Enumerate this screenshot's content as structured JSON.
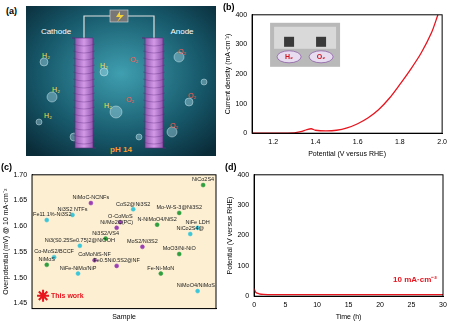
{
  "illustration": {
    "title": "(a)",
    "cathode": "Cathode",
    "anode": "Anode",
    "cathode_gas": "H₂",
    "anode_gas": "O₂",
    "electrolyte": "pH 14"
  },
  "chart_data": [
    {
      "type": "line",
      "title": "(b)",
      "x_label": "Potential (V versus RHE)",
      "y_label": "Current density (mA·cm⁻²)",
      "x": [
        1.1,
        1.2,
        1.3,
        1.33,
        1.36,
        1.38,
        1.4,
        1.45,
        1.5,
        1.55,
        1.6,
        1.65,
        1.7,
        1.75,
        1.8,
        1.85,
        1.9,
        1.95,
        1.98
      ],
      "values": [
        0,
        0,
        1,
        5,
        12,
        15,
        10,
        8,
        10,
        18,
        32,
        52,
        80,
        118,
        165,
        215,
        270,
        340,
        400
      ],
      "color": "#e8141e",
      "xlim": [
        1.1,
        2.0
      ],
      "xticks": [
        1.2,
        1.4,
        1.6,
        1.8,
        {
          "value": 2,
          "label": "2.0"
        }
      ],
      "ylim": [
        0,
        400
      ],
      "yticks": [
        0,
        100,
        200,
        300,
        400
      ],
      "grid": false,
      "annotations": [
        "H₂",
        "O₂"
      ]
    },
    {
      "type": "scatter",
      "title": "(c)",
      "x_label": "Sample",
      "y_label": "Overpotential (mV) @ 10 mA·cm⁻²",
      "xlim": [
        0,
        1
      ],
      "ylim": [
        1.44,
        1.7
      ],
      "yticks": [
        1.45,
        {
          "value": 1.5,
          "label": "1.50"
        },
        1.55,
        {
          "value": 1.6,
          "label": "1.60"
        },
        1.65,
        {
          "value": 1.7,
          "label": "1.70"
        }
      ],
      "tick_labels": "y",
      "grid": false,
      "points": [
        {
          "label": "NiCo2S4",
          "x": 0.93,
          "y": 1.68,
          "color": "#2e9e3e",
          "marker": "circle"
        },
        {
          "label": "NiMoC-NCNFs",
          "x": 0.32,
          "y": 1.645,
          "color": "#9b3fb5",
          "marker": "circle"
        },
        {
          "label": "CoS2@Ni3S2",
          "x": 0.55,
          "y": 1.633,
          "color": "#3cc6d8",
          "marker": "circle"
        },
        {
          "label": "Mo-W-S-3@Ni3S2",
          "x": 0.8,
          "y": 1.626,
          "color": "#2e9e3e",
          "marker": "circle"
        },
        {
          "label": "Ni3S2 NTFs",
          "x": 0.22,
          "y": 1.622,
          "color": "#3cc6d8",
          "marker": "circle"
        },
        {
          "label": "Fe11.1%-Ni3S2",
          "x": 0.08,
          "y": 1.612,
          "color": "#3cc6d8",
          "marker": "circle"
        },
        {
          "label": "O-CoMoS",
          "x": 0.48,
          "y": 1.608,
          "color": "#9b3fb5",
          "marker": "circle"
        },
        {
          "label": "N-NiMoO4/NiS2",
          "x": 0.68,
          "y": 1.603,
          "color": "#2e9e3e",
          "marker": "circle"
        },
        {
          "label": "NiFe LDH",
          "x": 0.9,
          "y": 1.597,
          "color": "#3cc6d8",
          "marker": "circle"
        },
        {
          "label": "Ni/Mo2C(PC)",
          "x": 0.46,
          "y": 1.597,
          "color": "#9b3fb5",
          "marker": "circle"
        },
        {
          "label": "NiCo2S4@",
          "x": 0.86,
          "y": 1.585,
          "color": "#3cc6d8",
          "marker": "circle"
        },
        {
          "label": "Ni3S2/VS4",
          "x": 0.4,
          "y": 1.576,
          "color": "#2e9e3e",
          "marker": "circle"
        },
        {
          "label": "Ni3(S0.25Se0.75)2@NiOOH",
          "x": 0.26,
          "y": 1.562,
          "color": "#3cc6d8",
          "marker": "circle"
        },
        {
          "label": "MoS2/Ni3S2",
          "x": 0.6,
          "y": 1.56,
          "color": "#9b3fb5",
          "marker": "circle"
        },
        {
          "label": "MoO3/Ni-NiO",
          "x": 0.8,
          "y": 1.546,
          "color": "#2e9e3e",
          "marker": "circle"
        },
        {
          "label": "Co-MoS2/BCCF",
          "x": 0.12,
          "y": 1.54,
          "color": "#3cc6d8",
          "marker": "circle"
        },
        {
          "label": "CoMoNiS-NF",
          "x": 0.34,
          "y": 1.534,
          "color": "#9b3fb5",
          "marker": "circle"
        },
        {
          "label": "NiMoS",
          "x": 0.08,
          "y": 1.525,
          "color": "#2e9e3e",
          "marker": "circle"
        },
        {
          "label": "Fe0.5Ni0.5S2@NF",
          "x": 0.46,
          "y": 1.523,
          "color": "#9b3fb5",
          "marker": "circle"
        },
        {
          "label": "NiFe-NiMo/NiP",
          "x": 0.25,
          "y": 1.508,
          "color": "#3cc6d8",
          "marker": "circle"
        },
        {
          "label": "Fe-Ni-MoN",
          "x": 0.7,
          "y": 1.508,
          "color": "#2e9e3e",
          "marker": "circle"
        },
        {
          "label": "NiMoO4/NiMoS",
          "x": 0.9,
          "y": 1.474,
          "color": "#3cc6d8",
          "marker": "circle"
        },
        {
          "label": "This work",
          "x": 0.06,
          "y": 1.465,
          "color": "#e8141e",
          "marker": "star"
        }
      ]
    },
    {
      "type": "line",
      "title": "(d)",
      "x_label": "Time (h)",
      "y_label": "Potential (V versus RHE)",
      "x": [
        0,
        0.3,
        0.8,
        1.5,
        3,
        5,
        10,
        15,
        20,
        25,
        30
      ],
      "values": [
        25,
        12,
        8,
        6,
        5,
        5,
        5,
        5,
        5,
        5,
        5
      ],
      "color": "#e8141e",
      "xlim": [
        0,
        30
      ],
      "xticks": [
        0,
        5,
        10,
        15,
        20,
        25,
        30
      ],
      "ylim": [
        0,
        400
      ],
      "yticks": [
        0,
        100,
        200,
        300,
        400
      ],
      "grid": false,
      "annotations": [
        "10 mA·cm⁻²"
      ]
    }
  ]
}
